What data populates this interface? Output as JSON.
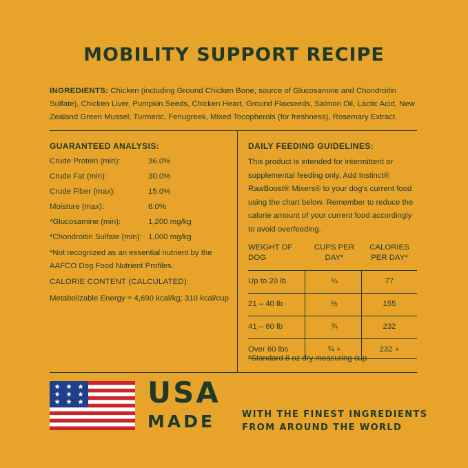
{
  "title": "MOBILITY SUPPORT RECIPE",
  "ingredients": {
    "label": "INGREDIENTS:",
    "text": " Chicken (including Ground Chicken Bone, source of Glucosamine and Chondroitin Sulfate), Chicken Liver, Pumpkin Seeds, Chicken Heart, Ground Flaxseeds, Salmon Oil, Lactic Acid, New Zealand Green Mussel, Turmeric, Fenugreek, Mixed Tocopherols (for freshness), Rosemary Extract."
  },
  "analysis": {
    "heading": "GUARANTEED ANALYSIS:",
    "rows": [
      {
        "label": "Crude Protein (min):",
        "value": "36.0%"
      },
      {
        "label": "Crude Fat (min):",
        "value": "30.0%"
      },
      {
        "label": "Crude Fiber (max):",
        "value": "15.0%"
      },
      {
        "label": "Moisture (max):",
        "value": "6.0%"
      },
      {
        "label": "*Glucosamine (min):",
        "value": "1,200 mg/kg"
      },
      {
        "label": "*Chondroitin Sulfate (min):",
        "value": "1,000 mg/kg"
      }
    ],
    "note": "*Not recognized as an essential nutrient by the AAFCO Dog Food Nutrient Profiles.",
    "calorie_heading": "CALORIE CONTENT (CALCULATED):",
    "calorie_value": "Metabolizable Energy = 4,690 kcal/kg; 310 kcal/cup"
  },
  "feeding": {
    "heading": "DAILY FEEDING GUIDELINES:",
    "paragraph": "This product is intended for intermittent or supplemental feeding only. Add Instinct® RawBoost® Mixers® to your dog's current food using the chart below. Remember to reduce the calorie amount of your current food accordingly to avoid overfeeding.",
    "columns": [
      "WEIGHT OF DOG",
      "CUPS PER DAY*",
      "CALORIES PER DAY*"
    ],
    "rows": [
      {
        "weight": "Up to 20 lb",
        "cups": "¼",
        "calories": "77"
      },
      {
        "weight": "21 – 40 lb",
        "cups": "½",
        "calories": "155"
      },
      {
        "weight": "41 – 60 lb",
        "cups": "¾",
        "calories": "232"
      },
      {
        "weight": "Over 60 lbs",
        "cups": "¾ +",
        "calories": "232 +"
      }
    ],
    "footnote": "*Standard 8 oz dry measuring cup"
  },
  "badge": {
    "usa": "USA",
    "made": "MADE",
    "tagline_1": "WITH THE FINEST INGREDIENTS",
    "tagline_2": "FROM AROUND THE WORLD"
  },
  "colors": {
    "background": "#e8a42a",
    "text": "#1f3a2b",
    "flag_red": "#c9252c",
    "flag_blue": "#1e3f8a",
    "flag_white": "#ffffff"
  }
}
